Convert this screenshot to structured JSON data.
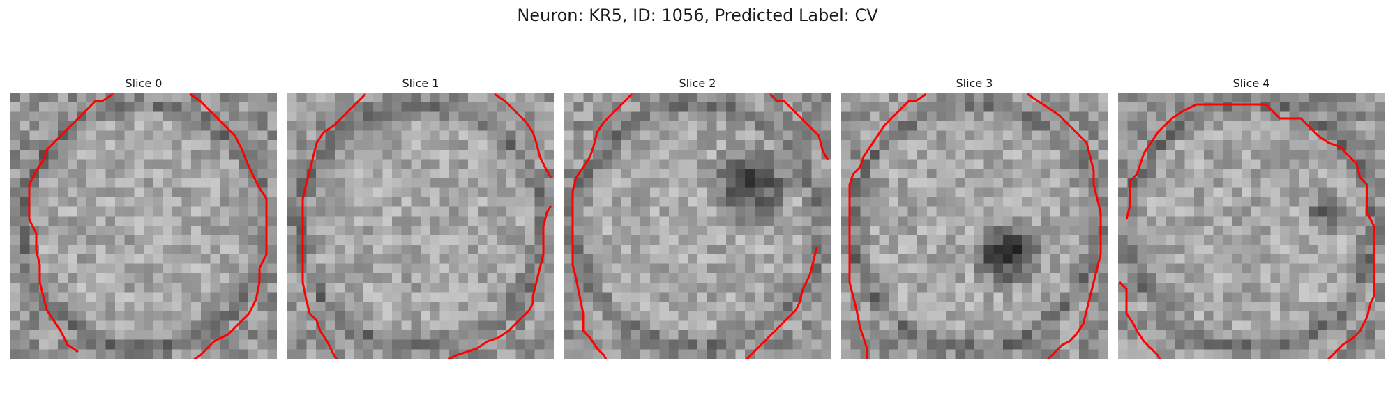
{
  "figure": {
    "title": "Neuron: KR5, ID: 1056, Predicted Label: CV",
    "contour_color": "#ff0000"
  },
  "slices": [
    {
      "title": "Slice 0"
    },
    {
      "title": "Slice 1"
    },
    {
      "title": "Slice 2"
    },
    {
      "title": "Slice 3"
    },
    {
      "title": "Slice 4"
    }
  ]
}
